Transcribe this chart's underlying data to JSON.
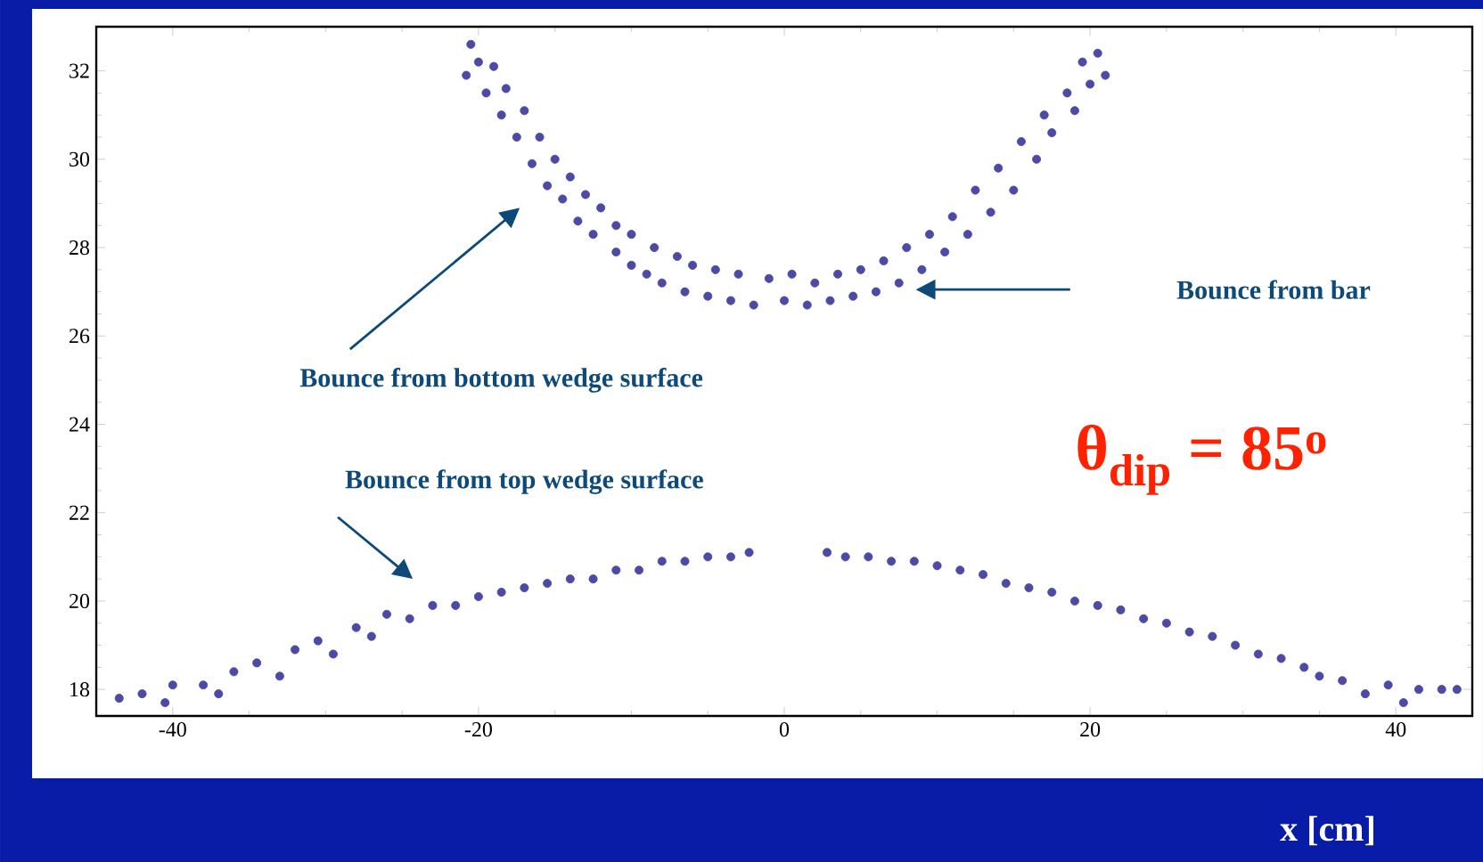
{
  "chart_data": {
    "type": "scatter",
    "xlabel": "x [cm]",
    "xlim": [
      -45,
      45
    ],
    "ylim": [
      17.4,
      33
    ],
    "xticks": [
      -40,
      -20,
      0,
      20,
      40
    ],
    "yticks": [
      18,
      20,
      22,
      24,
      26,
      28,
      30,
      32
    ],
    "marker": "circle",
    "color": "#4d4aa6",
    "x": [
      -20.5,
      -20.8,
      -20,
      -19.5,
      -19,
      -18.5,
      -18.2,
      -17.5,
      -17,
      -16.5,
      -16,
      -15.5,
      -15,
      -14.5,
      -14,
      -13.5,
      -13,
      -12.5,
      -12,
      -11,
      -11,
      -10,
      -10,
      -9,
      -8.5,
      -8,
      -7,
      -6.5,
      -6,
      -5,
      -4.5,
      -3.5,
      -3,
      -2,
      -1,
      0,
      0.5,
      1.5,
      2,
      3,
      3.5,
      4.5,
      5,
      6,
      6.5,
      7.5,
      8,
      9,
      9.5,
      10.5,
      11,
      12,
      12.5,
      13.5,
      14,
      15,
      15.5,
      16.5,
      17,
      17.5,
      18.5,
      19,
      19.5,
      20,
      20.5,
      21,
      -43.5,
      -42,
      -40.5,
      -40,
      -38,
      -37,
      -36,
      -34.5,
      -33,
      -32,
      -30.5,
      -29.5,
      -28,
      -27,
      -26,
      -24.5,
      -23,
      -21.5,
      -20,
      -18.5,
      -17,
      -15.5,
      -14,
      -12.5,
      -11,
      -9.5,
      -8,
      -6.5,
      -5,
      -3.5,
      -2.3,
      2.8,
      4,
      5.5,
      7,
      8.5,
      10,
      11.5,
      13,
      14.5,
      16,
      17.5,
      19,
      20.5,
      22,
      23.5,
      25,
      26.5,
      28,
      29.5,
      31,
      32.5,
      34,
      35,
      36.5,
      38,
      39.5,
      40.5,
      41.5,
      43,
      44
    ],
    "values": [
      32.6,
      31.9,
      32.2,
      31.5,
      32.1,
      31,
      31.6,
      30.5,
      31.1,
      29.9,
      30.5,
      29.4,
      30,
      29.1,
      29.6,
      28.6,
      29.2,
      28.3,
      28.9,
      27.9,
      28.5,
      27.6,
      28.3,
      27.4,
      28,
      27.2,
      27.8,
      27,
      27.6,
      26.9,
      27.5,
      26.8,
      27.4,
      26.7,
      27.3,
      26.8,
      27.4,
      26.7,
      27.2,
      26.8,
      27.4,
      26.9,
      27.5,
      27,
      27.7,
      27.2,
      28,
      27.5,
      28.3,
      27.9,
      28.7,
      28.3,
      29.3,
      28.8,
      29.8,
      29.3,
      30.4,
      30,
      31,
      30.6,
      31.5,
      31.1,
      32.2,
      31.7,
      32.4,
      31.9,
      17.8,
      17.9,
      17.7,
      18.1,
      18.1,
      17.9,
      18.4,
      18.6,
      18.3,
      18.9,
      19.1,
      18.8,
      19.4,
      19.2,
      19.7,
      19.6,
      19.9,
      19.9,
      20.1,
      20.2,
      20.3,
      20.4,
      20.5,
      20.5,
      20.7,
      20.7,
      20.9,
      20.9,
      21,
      21,
      21.1,
      21.1,
      21,
      21,
      20.9,
      20.9,
      20.8,
      20.7,
      20.6,
      20.4,
      20.3,
      20.2,
      20,
      19.9,
      19.8,
      19.6,
      19.5,
      19.3,
      19.2,
      19,
      18.8,
      18.7,
      18.5,
      18.3,
      18.2,
      17.9,
      18.1,
      17.7,
      18,
      18,
      18
    ],
    "annotations": [
      "Bounce from bottom wedge surface",
      "Bounce from bar",
      "Bounce from top wedge surface",
      "θ$_{dip}$ = 85$^{o}$"
    ]
  }
}
